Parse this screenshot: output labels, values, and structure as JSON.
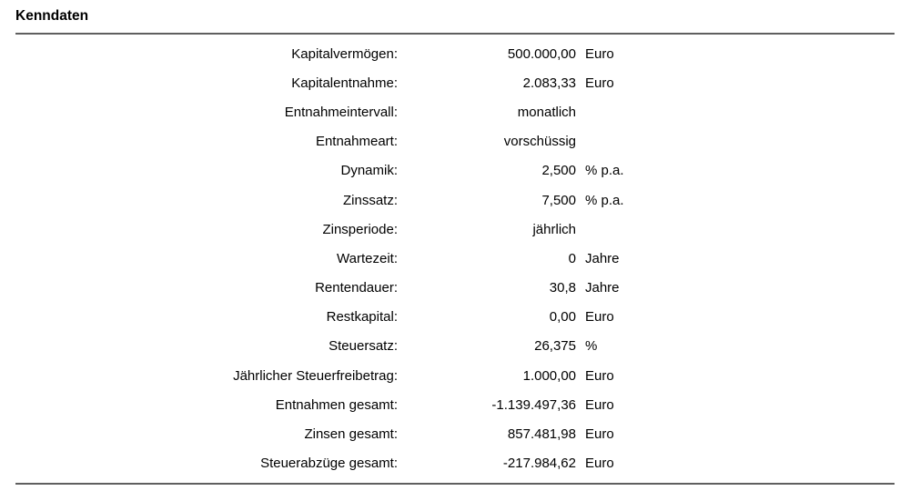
{
  "section": {
    "title": "Kenndaten"
  },
  "table": {
    "rows": [
      {
        "label": "Kapitalvermögen:",
        "value": "500.000,00",
        "unit": "Euro"
      },
      {
        "label": "Kapitalentnahme:",
        "value": "2.083,33",
        "unit": "Euro"
      },
      {
        "label": "Entnahmeintervall:",
        "value": "monatlich",
        "unit": ""
      },
      {
        "label": "Entnahmeart:",
        "value": "vorschüssig",
        "unit": ""
      },
      {
        "label": "Dynamik:",
        "value": "2,500",
        "unit": "% p.a."
      },
      {
        "label": "Zinssatz:",
        "value": "7,500",
        "unit": "% p.a."
      },
      {
        "label": "Zinsperiode:",
        "value": "jährlich",
        "unit": ""
      },
      {
        "label": "Wartezeit:",
        "value": "0",
        "unit": "Jahre"
      },
      {
        "label": "Rentendauer:",
        "value": "30,8",
        "unit": "Jahre"
      },
      {
        "label": "Restkapital:",
        "value": "0,00",
        "unit": "Euro"
      },
      {
        "label": "Steuersatz:",
        "value": "26,375",
        "unit": "%"
      },
      {
        "label": "Jährlicher Steuerfreibetrag:",
        "value": "1.000,00",
        "unit": "Euro"
      },
      {
        "label": "Entnahmen gesamt:",
        "value": "-1.139.497,36",
        "unit": "Euro"
      },
      {
        "label": "Zinsen gesamt:",
        "value": "857.481,98",
        "unit": "Euro"
      },
      {
        "label": "Steuerabzüge gesamt:",
        "value": "-217.984,62",
        "unit": "Euro"
      }
    ]
  },
  "colors": {
    "background": "#ffffff",
    "text": "#000000",
    "rule": "#5f5f5f"
  }
}
